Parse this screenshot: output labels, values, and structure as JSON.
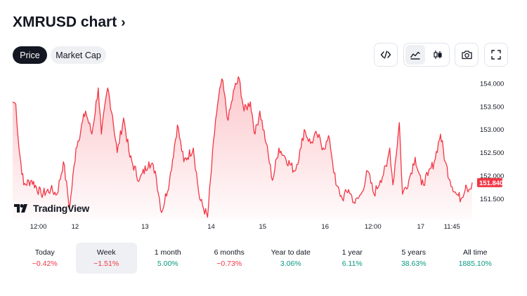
{
  "header": {
    "title": "XMRUSD chart",
    "chevron": "›"
  },
  "tabs": [
    {
      "label": "Price",
      "active": true
    },
    {
      "label": "Market Cap",
      "active": false
    }
  ],
  "toolbar": {
    "icons": [
      "embed-code-icon",
      "area-chart-icon",
      "candlestick-icon",
      "camera-icon",
      "fullscreen-icon"
    ],
    "selected_chart_style": "area"
  },
  "logo": {
    "text": "TradingView"
  },
  "chart_data": {
    "type": "area",
    "series": [
      {
        "name": "XMRUSD",
        "color": "#f23645"
      }
    ],
    "x_ticks": [
      "12:00",
      "12",
      "13",
      "14",
      "15",
      "16",
      "12:00",
      "17",
      "11:45"
    ],
    "y_ticks": [
      "154.000",
      "153.500",
      "153.000",
      "152.500",
      "152.000",
      "151.500"
    ],
    "ylim": [
      151.05,
      154.18
    ],
    "last_price": "151.840",
    "anchors": [
      [
        0,
        153.6
      ],
      [
        2,
        153.55
      ],
      [
        4,
        152.6
      ],
      [
        7,
        151.8
      ],
      [
        12,
        151.9
      ],
      [
        18,
        151.6
      ],
      [
        24,
        151.7
      ],
      [
        28,
        151.6
      ],
      [
        32,
        152.3
      ],
      [
        36,
        151.3
      ],
      [
        40,
        152.6
      ],
      [
        46,
        153.4
      ],
      [
        50,
        152.9
      ],
      [
        54,
        153.9
      ],
      [
        56,
        152.9
      ],
      [
        60,
        153.9
      ],
      [
        63,
        153.3
      ],
      [
        66,
        152.5
      ],
      [
        70,
        153.25
      ],
      [
        74,
        152.4
      ],
      [
        80,
        151.9
      ],
      [
        86,
        152.3
      ],
      [
        90,
        152.1
      ],
      [
        94,
        151.2
      ],
      [
        99,
        151.9
      ],
      [
        104,
        153.1
      ],
      [
        108,
        152.3
      ],
      [
        114,
        152.6
      ],
      [
        118,
        151.5
      ],
      [
        123,
        151.1
      ],
      [
        128,
        153.2
      ],
      [
        132,
        154.1
      ],
      [
        136,
        153.2
      ],
      [
        140,
        153.9
      ],
      [
        143,
        154.1
      ],
      [
        146,
        153.4
      ],
      [
        150,
        153.6
      ],
      [
        153,
        152.9
      ],
      [
        156,
        153.4
      ],
      [
        160,
        152.7
      ],
      [
        164,
        151.9
      ],
      [
        168,
        152.6
      ],
      [
        172,
        152.4
      ],
      [
        178,
        152.1
      ],
      [
        182,
        152.6
      ],
      [
        184,
        153.0
      ],
      [
        188,
        152.7
      ],
      [
        192,
        152.9
      ],
      [
        196,
        152.6
      ],
      [
        200,
        152.8
      ],
      [
        204,
        151.8
      ],
      [
        208,
        151.5
      ],
      [
        212,
        151.7
      ],
      [
        216,
        151.4
      ],
      [
        220,
        151.6
      ],
      [
        224,
        152.1
      ],
      [
        228,
        151.6
      ],
      [
        232,
        151.9
      ],
      [
        236,
        152.2
      ],
      [
        238,
        152.6
      ],
      [
        240,
        151.8
      ],
      [
        244,
        153.15
      ],
      [
        246,
        151.6
      ],
      [
        250,
        151.9
      ],
      [
        254,
        152.4
      ],
      [
        258,
        151.8
      ],
      [
        262,
        152.0
      ],
      [
        266,
        152.3
      ],
      [
        270,
        152.9
      ],
      [
        273,
        152.3
      ],
      [
        276,
        151.9
      ],
      [
        280,
        151.6
      ],
      [
        283,
        151.5
      ],
      [
        286,
        151.8
      ],
      [
        288,
        151.7
      ],
      [
        290,
        151.85
      ]
    ],
    "x_range": [
      0,
      290
    ]
  },
  "periods": [
    {
      "label": "Today",
      "value": "−0.42%",
      "trend": "neg",
      "selected": false
    },
    {
      "label": "Week",
      "value": "−1.51%",
      "trend": "neg",
      "selected": true
    },
    {
      "label": "1 month",
      "value": "5.00%",
      "trend": "pos",
      "selected": false
    },
    {
      "label": "6 months",
      "value": "−0.73%",
      "trend": "neg",
      "selected": false
    },
    {
      "label": "Year to date",
      "value": "3.06%",
      "trend": "pos",
      "selected": false
    },
    {
      "label": "1 year",
      "value": "6.11%",
      "trend": "pos",
      "selected": false
    },
    {
      "label": "5 years",
      "value": "38.63%",
      "trend": "pos",
      "selected": false
    },
    {
      "label": "All time",
      "value": "1885.10%",
      "trend": "pos",
      "selected": false
    }
  ],
  "colors": {
    "line": "#f23645",
    "positive": "#089981",
    "negative": "#f23645",
    "dark": "#131722"
  }
}
